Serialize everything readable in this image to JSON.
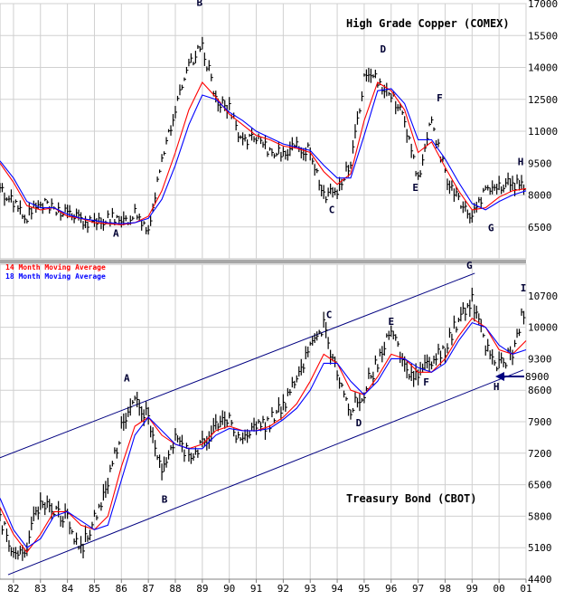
{
  "chart_data": [
    {
      "type": "ohlc",
      "title": "High Grade Copper (COMEX)",
      "xlabel": "",
      "ylabel": "",
      "ylim": [
        5000,
        17000
      ],
      "yticks": [
        "17000",
        "15500",
        "14000",
        "12500",
        "11000",
        "9500",
        "8000",
        "6500"
      ],
      "grid": true,
      "markers": [
        {
          "label": "A",
          "x": 85.8,
          "y": 6050
        },
        {
          "label": "B",
          "x": 88.9,
          "y": 16900
        },
        {
          "label": "C",
          "x": 93.8,
          "y": 7150
        },
        {
          "label": "D",
          "x": 95.7,
          "y": 14700
        },
        {
          "label": "E",
          "x": 96.9,
          "y": 8200
        },
        {
          "label": "F",
          "x": 97.8,
          "y": 12400
        },
        {
          "label": "G",
          "x": 99.7,
          "y": 6300
        },
        {
          "label": "H",
          "x": 100.8,
          "y": 9400
        }
      ],
      "series": [
        {
          "name": "",
          "color": "#000000",
          "x": [
            81.5,
            82,
            82.5,
            83,
            83.5,
            84,
            84.5,
            85,
            85.5,
            86,
            86.5,
            87,
            87.5,
            88,
            88.5,
            89,
            89.5,
            90,
            90.5,
            91,
            91.5,
            92,
            92.5,
            93,
            93.5,
            94,
            94.5,
            95,
            95.5,
            96,
            96.5,
            97,
            97.5,
            98,
            98.5,
            99,
            99.5,
            100,
            100.5,
            101
          ],
          "values": [
            8200,
            7700,
            7000,
            7600,
            7300,
            7200,
            6800,
            6600,
            7000,
            6600,
            7200,
            6400,
            9800,
            12000,
            14000,
            15000,
            12600,
            12000,
            10500,
            10600,
            10000,
            10100,
            10200,
            10100,
            8000,
            8200,
            9500,
            13500,
            13400,
            12800,
            11500,
            8800,
            11500,
            9000,
            7700,
            6900,
            8200,
            8400,
            8600,
            8200
          ]
        },
        {
          "name": "14 Month Moving Average",
          "color": "#ff0000",
          "x": [
            81.5,
            82,
            82.5,
            83,
            83.5,
            84,
            84.5,
            85,
            85.5,
            86,
            86.5,
            87,
            87.5,
            88,
            88.5,
            89,
            89.5,
            90,
            90.5,
            91,
            91.5,
            92,
            92.5,
            93,
            93.5,
            94,
            94.5,
            95,
            95.5,
            96,
            96.5,
            97,
            97.5,
            98,
            98.5,
            99,
            99.5,
            100,
            100.5,
            101
          ],
          "values": [
            9500,
            8600,
            7500,
            7300,
            7400,
            7000,
            6900,
            6700,
            6650,
            6600,
            6700,
            7000,
            8200,
            10000,
            12000,
            13300,
            12600,
            11800,
            11300,
            10800,
            10600,
            10300,
            10200,
            10000,
            9100,
            8500,
            9000,
            11500,
            13300,
            12900,
            12000,
            10000,
            10500,
            9300,
            8200,
            7300,
            7400,
            7900,
            8200,
            8300
          ]
        },
        {
          "name": "18 Month Moving Average",
          "color": "#0000ff",
          "x": [
            81.5,
            82,
            82.5,
            83,
            83.5,
            84,
            84.5,
            85,
            85.5,
            86,
            86.5,
            87,
            87.5,
            88,
            88.5,
            89,
            89.5,
            90,
            90.5,
            91,
            91.5,
            92,
            92.5,
            93,
            93.5,
            94,
            94.5,
            95,
            95.5,
            96,
            96.5,
            97,
            97.5,
            98,
            98.5,
            99,
            99.5,
            100,
            100.5,
            101
          ],
          "values": [
            9600,
            8800,
            7700,
            7400,
            7400,
            7100,
            6900,
            6800,
            6700,
            6650,
            6700,
            6900,
            7800,
            9400,
            11300,
            12700,
            12500,
            11900,
            11500,
            11000,
            10700,
            10400,
            10250,
            10100,
            9400,
            8800,
            8800,
            10800,
            12900,
            13000,
            12300,
            10600,
            10600,
            9700,
            8600,
            7600,
            7300,
            7700,
            8000,
            8200
          ]
        }
      ]
    },
    {
      "type": "ohlc",
      "title": "Treasury Bond (CBOT)",
      "xlabel": "",
      "ylabel": "",
      "ylim": [
        4400,
        11400
      ],
      "yticks": [
        "10700",
        "10000",
        "9300",
        "8600",
        "7900",
        "7200",
        "6500",
        "5800",
        "5100",
        "4400"
      ],
      "xticks": [
        "82",
        "83",
        "84",
        "85",
        "86",
        "87",
        "88",
        "89",
        "90",
        "91",
        "92",
        "93",
        "94",
        "95",
        "96",
        "97",
        "98",
        "99",
        "00",
        "01"
      ],
      "grid": true,
      "legend": [
        "14 Month Moving Average",
        "18 Month Moving Average"
      ],
      "annotation": "8900",
      "channel": [
        {
          "name": "upper",
          "x": [
            81.5,
            99.1
          ],
          "y": [
            7100,
            11200
          ]
        },
        {
          "name": "lower",
          "x": [
            81.8,
            100.9
          ],
          "y": [
            4500,
            9050
          ]
        }
      ],
      "markers": [
        {
          "label": "A",
          "x": 86.2,
          "y": 8800
        },
        {
          "label": "B",
          "x": 87.6,
          "y": 6100
        },
        {
          "label": "C",
          "x": 93.7,
          "y": 10200
        },
        {
          "label": "D",
          "x": 94.8,
          "y": 7800
        },
        {
          "label": "E",
          "x": 96.0,
          "y": 10050
        },
        {
          "label": "F",
          "x": 97.3,
          "y": 8700
        },
        {
          "label": "G",
          "x": 98.9,
          "y": 11300
        },
        {
          "label": "H",
          "x": 99.9,
          "y": 8600
        },
        {
          "label": "I",
          "x": 100.9,
          "y": 10800
        }
      ],
      "series": [
        {
          "name": "",
          "color": "#000000",
          "x": [
            81.5,
            82,
            82.5,
            83,
            83.5,
            84,
            84.5,
            85,
            85.5,
            86,
            86.5,
            87,
            87.5,
            88,
            88.5,
            89,
            89.5,
            90,
            90.5,
            91,
            91.5,
            92,
            92.5,
            93,
            93.5,
            94,
            94.5,
            95,
            95.5,
            96,
            96.5,
            97,
            97.5,
            98,
            98.5,
            99,
            99.5,
            100,
            100.5,
            101
          ],
          "values": [
            5800,
            4900,
            5200,
            6200,
            6000,
            5700,
            5100,
            5700,
            6500,
            7800,
            8400,
            8000,
            6800,
            7500,
            7200,
            7400,
            7800,
            7900,
            7400,
            7800,
            7900,
            8300,
            8800,
            9500,
            10000,
            8900,
            8100,
            8600,
            9200,
            9900,
            9100,
            8900,
            9200,
            9500,
            10200,
            10600,
            9600,
            9100,
            9500,
            10500
          ]
        },
        {
          "name": "14 Month Moving Average",
          "color": "#ff0000",
          "x": [
            81.5,
            82,
            82.5,
            83,
            83.5,
            84,
            84.5,
            85,
            85.5,
            86,
            86.5,
            87,
            87.5,
            88,
            88.5,
            89,
            89.5,
            90,
            90.5,
            91,
            91.5,
            92,
            92.5,
            93,
            93.5,
            94,
            94.5,
            95,
            95.5,
            96,
            96.5,
            97,
            97.5,
            98,
            98.5,
            99,
            99.5,
            100,
            100.5,
            101
          ],
          "values": [
            6000,
            5400,
            5000,
            5400,
            5900,
            5900,
            5600,
            5500,
            5800,
            6900,
            7800,
            8000,
            7600,
            7400,
            7300,
            7400,
            7700,
            7800,
            7700,
            7700,
            7800,
            8000,
            8300,
            8800,
            9400,
            9200,
            8600,
            8500,
            8900,
            9400,
            9300,
            9000,
            9000,
            9300,
            9800,
            10200,
            10000,
            9500,
            9400,
            9700
          ]
        },
        {
          "name": "18 Month Moving Average",
          "color": "#0000ff",
          "x": [
            81.5,
            82,
            82.5,
            83,
            83.5,
            84,
            84.5,
            85,
            85.5,
            86,
            86.5,
            87,
            87.5,
            88,
            88.5,
            89,
            89.5,
            90,
            90.5,
            91,
            91.5,
            92,
            92.5,
            93,
            93.5,
            94,
            94.5,
            95,
            95.5,
            96,
            96.5,
            97,
            97.5,
            98,
            98.5,
            99,
            99.5,
            100,
            100.5,
            101
          ],
          "values": [
            6200,
            5500,
            5100,
            5300,
            5800,
            5900,
            5700,
            5500,
            5600,
            6600,
            7600,
            8000,
            7700,
            7400,
            7300,
            7300,
            7600,
            7750,
            7700,
            7700,
            7750,
            7950,
            8200,
            8600,
            9200,
            9200,
            8800,
            8500,
            8800,
            9300,
            9300,
            9100,
            9000,
            9200,
            9700,
            10100,
            10000,
            9600,
            9400,
            9500
          ]
        }
      ]
    }
  ]
}
